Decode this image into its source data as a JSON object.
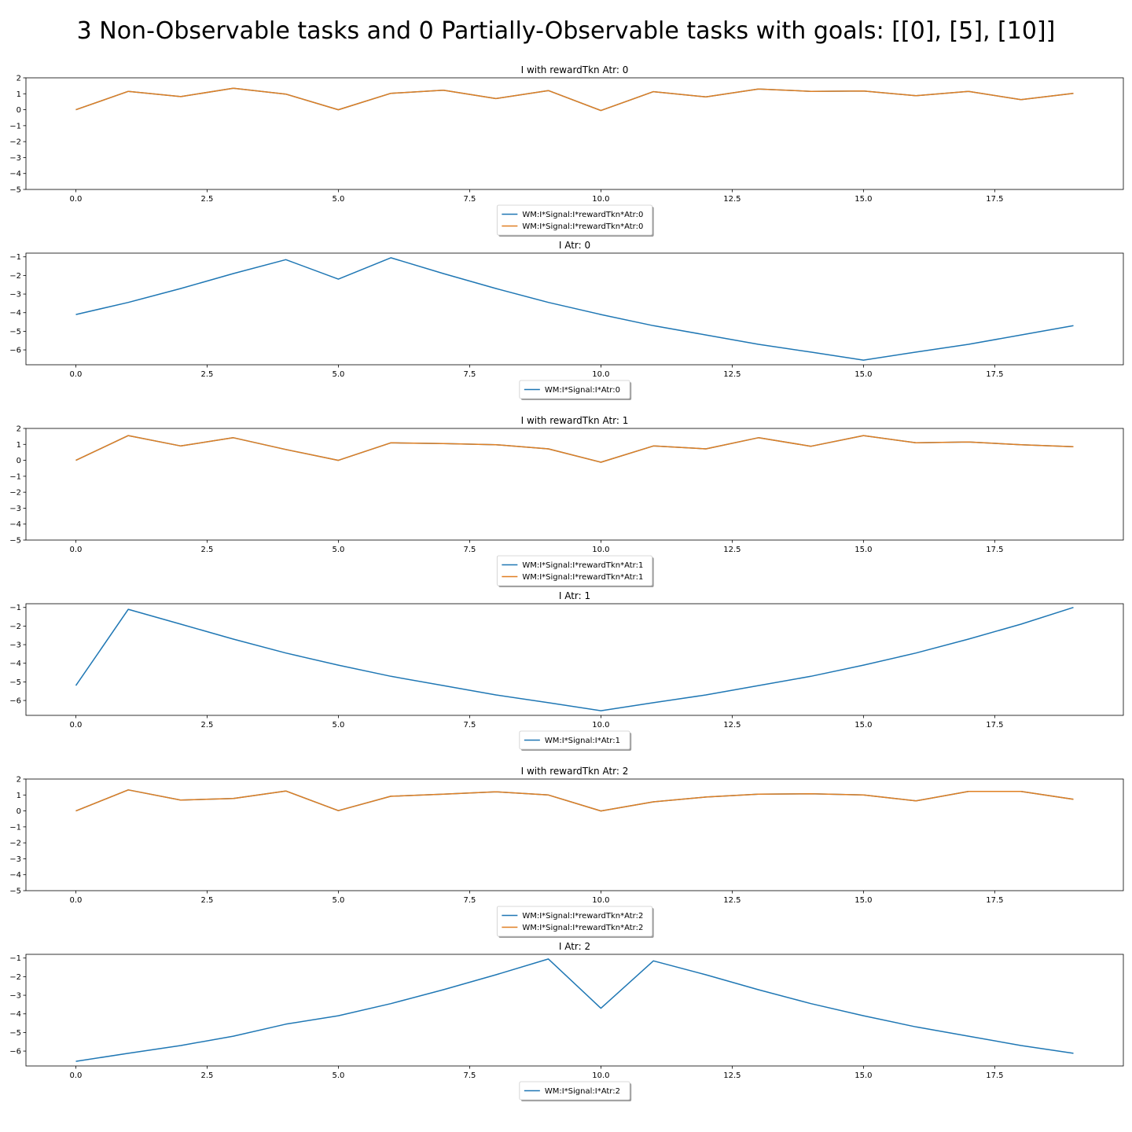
{
  "figure": {
    "suptitle": "3 Non-Observable tasks and 0 Partially-Observable tasks with goals: [[0], [5], [10]]"
  },
  "colors": {
    "blue": "#1f77b4",
    "orange": "#e07f22"
  },
  "chart_data": [
    {
      "type": "line",
      "title": "I with rewardTkn Atr: 0",
      "xlim": [
        -0.95,
        19.95
      ],
      "ylim": [
        -5,
        2
      ],
      "x_ticks": [
        "0.0",
        "2.5",
        "5.0",
        "7.5",
        "10.0",
        "12.5",
        "15.0",
        "17.5"
      ],
      "y_ticks": [
        "2",
        "1",
        "0",
        "−1",
        "−2",
        "−3",
        "−4",
        "−5"
      ],
      "x": [
        0,
        1,
        2,
        3,
        4,
        5,
        6,
        7,
        8,
        9,
        10,
        11,
        12,
        13,
        14,
        15,
        16,
        17,
        18,
        19
      ],
      "series": [
        {
          "name": "WM:I*Signal:I*rewardTkn*Atr:0",
          "color": "#1f77b4",
          "values": [
            0,
            1.15,
            0.82,
            1.35,
            0.98,
            0.0,
            1.03,
            1.22,
            0.7,
            1.2,
            -0.05,
            1.13,
            0.8,
            1.3,
            1.15,
            1.17,
            0.88,
            1.15,
            0.63,
            1.03
          ]
        },
        {
          "name": "WM:I*Signal:I*rewardTkn*Atr:0",
          "color": "#e07f22",
          "values": [
            0,
            1.15,
            0.82,
            1.35,
            0.98,
            0.0,
            1.03,
            1.22,
            0.7,
            1.2,
            -0.05,
            1.13,
            0.8,
            1.3,
            1.15,
            1.17,
            0.88,
            1.15,
            0.63,
            1.03
          ]
        }
      ]
    },
    {
      "type": "line",
      "title": "I Atr: 0",
      "xlim": [
        -0.95,
        19.95
      ],
      "ylim": [
        -6.8,
        -0.8
      ],
      "x_ticks": [
        "0.0",
        "2.5",
        "5.0",
        "7.5",
        "10.0",
        "12.5",
        "15.0",
        "17.5"
      ],
      "y_ticks": [
        "−1",
        "−2",
        "−3",
        "−4",
        "−5",
        "−6"
      ],
      "x": [
        0,
        1,
        2,
        3,
        4,
        5,
        6,
        7,
        8,
        9,
        10,
        11,
        12,
        13,
        14,
        15,
        16,
        17,
        18,
        19
      ],
      "series": [
        {
          "name": "WM:I*Signal:I*Atr:0",
          "color": "#1f77b4",
          "values": [
            -4.1,
            -3.45,
            -2.7,
            -1.9,
            -1.15,
            -2.2,
            -1.05,
            -1.9,
            -2.7,
            -3.45,
            -4.1,
            -4.7,
            -5.2,
            -5.7,
            -6.12,
            -6.55,
            -6.12,
            -5.7,
            -5.2,
            -4.7
          ]
        }
      ]
    },
    {
      "type": "line",
      "title": "I with rewardTkn Atr: 1",
      "xlim": [
        -0.95,
        19.95
      ],
      "ylim": [
        -5,
        2
      ],
      "x_ticks": [
        "0.0",
        "2.5",
        "5.0",
        "7.5",
        "10.0",
        "12.5",
        "15.0",
        "17.5"
      ],
      "y_ticks": [
        "2",
        "1",
        "0",
        "−1",
        "−2",
        "−3",
        "−4",
        "−5"
      ],
      "x": [
        0,
        1,
        2,
        3,
        4,
        5,
        6,
        7,
        8,
        9,
        10,
        11,
        12,
        13,
        14,
        15,
        16,
        17,
        18,
        19
      ],
      "series": [
        {
          "name": "WM:I*Signal:I*rewardTkn*Atr:1",
          "color": "#1f77b4",
          "values": [
            0,
            1.55,
            0.9,
            1.42,
            0.68,
            0.0,
            1.1,
            1.05,
            0.98,
            0.72,
            -0.12,
            0.9,
            0.72,
            1.42,
            0.88,
            1.55,
            1.1,
            1.15,
            0.98,
            0.85
          ]
        },
        {
          "name": "WM:I*Signal:I*rewardTkn*Atr:1",
          "color": "#e07f22",
          "values": [
            0,
            1.55,
            0.9,
            1.42,
            0.68,
            0.0,
            1.1,
            1.05,
            0.98,
            0.72,
            -0.12,
            0.9,
            0.72,
            1.42,
            0.88,
            1.55,
            1.1,
            1.15,
            0.98,
            0.85
          ]
        }
      ]
    },
    {
      "type": "line",
      "title": "I Atr: 1",
      "xlim": [
        -0.95,
        19.95
      ],
      "ylim": [
        -6.8,
        -0.8
      ],
      "x_ticks": [
        "0.0",
        "2.5",
        "5.0",
        "7.5",
        "10.0",
        "12.5",
        "15.0",
        "17.5"
      ],
      "y_ticks": [
        "−1",
        "−2",
        "−3",
        "−4",
        "−5",
        "−6"
      ],
      "x": [
        0,
        1,
        2,
        3,
        4,
        5,
        6,
        7,
        8,
        9,
        10,
        11,
        12,
        13,
        14,
        15,
        16,
        17,
        18,
        19
      ],
      "series": [
        {
          "name": "WM:I*Signal:I*Atr:1",
          "color": "#1f77b4",
          "values": [
            -5.2,
            -1.1,
            -1.9,
            -2.7,
            -3.45,
            -4.1,
            -4.7,
            -5.2,
            -5.7,
            -6.12,
            -6.55,
            -6.12,
            -5.7,
            -5.2,
            -4.7,
            -4.1,
            -3.45,
            -2.7,
            -1.9,
            -1.0
          ]
        }
      ]
    },
    {
      "type": "line",
      "title": "I with rewardTkn Atr: 2",
      "xlim": [
        -0.95,
        19.95
      ],
      "ylim": [
        -5,
        2
      ],
      "x_ticks": [
        "0.0",
        "2.5",
        "5.0",
        "7.5",
        "10.0",
        "12.5",
        "15.0",
        "17.5"
      ],
      "y_ticks": [
        "2",
        "1",
        "0",
        "−1",
        "−2",
        "−3",
        "−4",
        "−5"
      ],
      "x": [
        0,
        1,
        2,
        3,
        4,
        5,
        6,
        7,
        8,
        9,
        10,
        11,
        12,
        13,
        14,
        15,
        16,
        17,
        18,
        19
      ],
      "series": [
        {
          "name": "WM:I*Signal:I*rewardTkn*Atr:2",
          "color": "#1f77b4",
          "values": [
            0,
            1.32,
            0.68,
            0.78,
            1.25,
            0.02,
            0.92,
            1.05,
            1.2,
            1.0,
            0.0,
            0.57,
            0.87,
            1.05,
            1.08,
            1.0,
            0.63,
            1.22,
            1.22,
            0.73
          ]
        },
        {
          "name": "WM:I*Signal:I*rewardTkn*Atr:2",
          "color": "#e07f22",
          "values": [
            0,
            1.32,
            0.68,
            0.78,
            1.25,
            0.02,
            0.92,
            1.05,
            1.2,
            1.0,
            0.0,
            0.57,
            0.87,
            1.05,
            1.08,
            1.0,
            0.63,
            1.22,
            1.22,
            0.73
          ]
        }
      ]
    },
    {
      "type": "line",
      "title": "I Atr: 2",
      "xlim": [
        -0.95,
        19.95
      ],
      "ylim": [
        -6.8,
        -0.8
      ],
      "x_ticks": [
        "0.0",
        "2.5",
        "5.0",
        "7.5",
        "10.0",
        "12.5",
        "15.0",
        "17.5"
      ],
      "y_ticks": [
        "−1",
        "−2",
        "−3",
        "−4",
        "−5",
        "−6"
      ],
      "x": [
        0,
        1,
        2,
        3,
        4,
        5,
        6,
        7,
        8,
        9,
        10,
        11,
        12,
        13,
        14,
        15,
        16,
        17,
        18,
        19
      ],
      "series": [
        {
          "name": "WM:I*Signal:I*Atr:2",
          "color": "#1f77b4",
          "values": [
            -6.55,
            -6.12,
            -5.7,
            -5.2,
            -4.55,
            -4.1,
            -3.45,
            -2.7,
            -1.9,
            -1.05,
            -3.7,
            -1.15,
            -1.9,
            -2.7,
            -3.45,
            -4.1,
            -4.7,
            -5.2,
            -5.7,
            -6.12
          ]
        }
      ]
    }
  ]
}
